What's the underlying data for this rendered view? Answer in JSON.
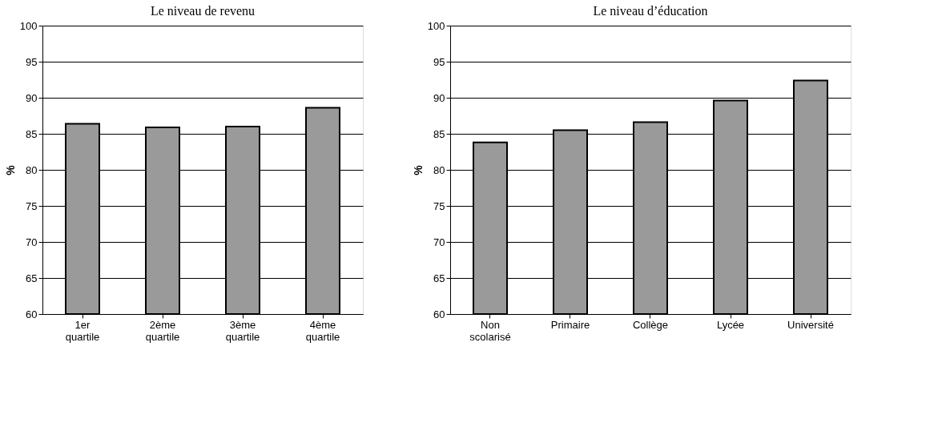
{
  "chart_data": [
    {
      "type": "bar",
      "title": "Le niveau de revenu",
      "ylabel": "%",
      "categories": [
        "1er quartile",
        "2ème quartile",
        "3ème quartile",
        "4ème quartile"
      ],
      "values": [
        86.4,
        85.9,
        86.0,
        88.6
      ],
      "color": "#9a9a9a",
      "ylim": [
        60,
        100
      ],
      "yticks": [
        60,
        65,
        70,
        75,
        80,
        85,
        90,
        95,
        100
      ],
      "grid": "y"
    },
    {
      "type": "bar",
      "title": "Le niveau d’éducation",
      "ylabel": "%",
      "categories": [
        "Non scolarisé",
        "Primaire",
        "Collège",
        "Lycée",
        "Université"
      ],
      "values": [
        83.8,
        85.5,
        86.6,
        89.6,
        92.4
      ],
      "color": "#9a9a9a",
      "ylim": [
        60,
        100
      ],
      "yticks": [
        60,
        65,
        70,
        75,
        80,
        85,
        90,
        95,
        100
      ],
      "grid": "y"
    }
  ]
}
